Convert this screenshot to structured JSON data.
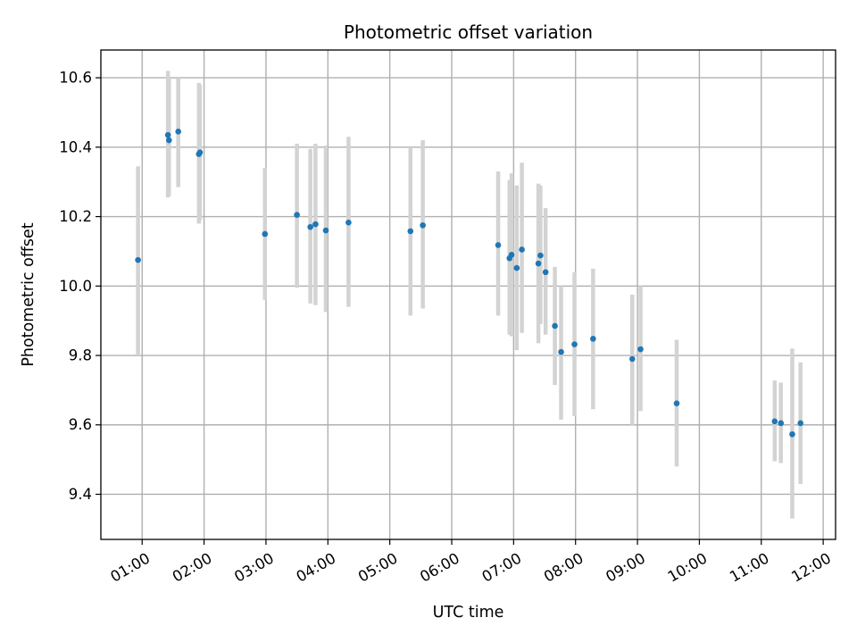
{
  "chart_data": {
    "type": "scatter",
    "title": "Photometric offset variation",
    "xlabel": "UTC time",
    "ylabel": "Photometric offset",
    "xlim": [
      "00:20",
      "12:12"
    ],
    "ylim": [
      9.27,
      10.68
    ],
    "x_ticks": [
      "01:00",
      "02:00",
      "03:00",
      "04:00",
      "05:00",
      "06:00",
      "07:00",
      "08:00",
      "09:00",
      "10:00",
      "11:00",
      "12:00"
    ],
    "y_ticks": [
      "9.4",
      "9.6",
      "9.8",
      "10.0",
      "10.2",
      "10.4",
      "10.6"
    ],
    "grid": true,
    "legend": "none",
    "colors": {
      "points": "#1f77b4",
      "error_bars": "#d3d3d3",
      "grid": "#b0b0b0"
    },
    "points": [
      {
        "x": "00:56",
        "y": 10.075,
        "ylo": 9.8,
        "yhi": 10.345
      },
      {
        "x": "01:25",
        "y": 10.435,
        "ylo": 10.255,
        "yhi": 10.62
      },
      {
        "x": "01:26",
        "y": 10.42,
        "ylo": 10.26,
        "yhi": 10.6
      },
      {
        "x": "01:35",
        "y": 10.445,
        "ylo": 10.285,
        "yhi": 10.6
      },
      {
        "x": "01:55",
        "y": 10.38,
        "ylo": 10.18,
        "yhi": 10.585
      },
      {
        "x": "01:56",
        "y": 10.385,
        "ylo": 10.19,
        "yhi": 10.58
      },
      {
        "x": "02:59",
        "y": 10.15,
        "ylo": 9.96,
        "yhi": 10.34
      },
      {
        "x": "03:30",
        "y": 10.205,
        "ylo": 9.995,
        "yhi": 10.41
      },
      {
        "x": "03:43",
        "y": 10.17,
        "ylo": 9.95,
        "yhi": 10.395
      },
      {
        "x": "03:48",
        "y": 10.178,
        "ylo": 9.945,
        "yhi": 10.41
      },
      {
        "x": "03:58",
        "y": 10.16,
        "ylo": 9.925,
        "yhi": 10.405
      },
      {
        "x": "04:20",
        "y": 10.183,
        "ylo": 9.94,
        "yhi": 10.43
      },
      {
        "x": "05:20",
        "y": 10.158,
        "ylo": 9.915,
        "yhi": 10.4
      },
      {
        "x": "05:32",
        "y": 10.175,
        "ylo": 9.935,
        "yhi": 10.42
      },
      {
        "x": "06:45",
        "y": 10.118,
        "ylo": 9.915,
        "yhi": 10.33
      },
      {
        "x": "06:56",
        "y": 10.08,
        "ylo": 9.86,
        "yhi": 10.305
      },
      {
        "x": "06:58",
        "y": 10.09,
        "ylo": 9.855,
        "yhi": 10.325
      },
      {
        "x": "07:03",
        "y": 10.052,
        "ylo": 9.815,
        "yhi": 10.29
      },
      {
        "x": "07:08",
        "y": 10.105,
        "ylo": 9.865,
        "yhi": 10.355
      },
      {
        "x": "07:24",
        "y": 10.065,
        "ylo": 9.835,
        "yhi": 10.295
      },
      {
        "x": "07:26",
        "y": 10.088,
        "ylo": 9.89,
        "yhi": 10.29
      },
      {
        "x": "07:31",
        "y": 10.04,
        "ylo": 9.86,
        "yhi": 10.225
      },
      {
        "x": "07:40",
        "y": 9.885,
        "ylo": 9.715,
        "yhi": 10.055
      },
      {
        "x": "07:46",
        "y": 9.81,
        "ylo": 9.615,
        "yhi": 10.0
      },
      {
        "x": "07:59",
        "y": 9.832,
        "ylo": 9.625,
        "yhi": 10.04
      },
      {
        "x": "08:17",
        "y": 9.848,
        "ylo": 9.645,
        "yhi": 10.05
      },
      {
        "x": "08:55",
        "y": 9.79,
        "ylo": 9.6,
        "yhi": 9.975
      },
      {
        "x": "09:03",
        "y": 9.818,
        "ylo": 9.64,
        "yhi": 10.0
      },
      {
        "x": "09:38",
        "y": 9.662,
        "ylo": 9.48,
        "yhi": 9.845
      },
      {
        "x": "11:13",
        "y": 9.61,
        "ylo": 9.495,
        "yhi": 9.728
      },
      {
        "x": "11:19",
        "y": 9.605,
        "ylo": 9.49,
        "yhi": 9.722
      },
      {
        "x": "11:30",
        "y": 9.573,
        "ylo": 9.33,
        "yhi": 9.82
      },
      {
        "x": "11:38",
        "y": 9.605,
        "ylo": 9.43,
        "yhi": 9.78
      }
    ]
  }
}
